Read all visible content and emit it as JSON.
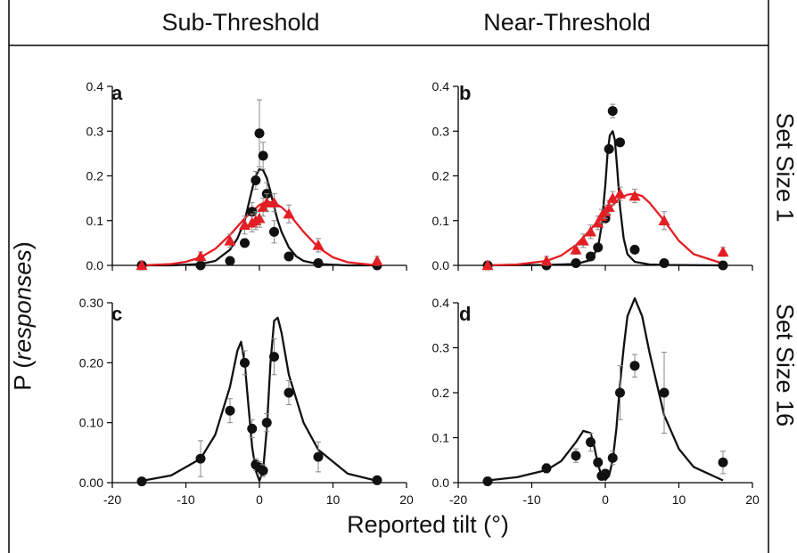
{
  "columns": [
    "Sub-Threshold",
    "Near-Threshold"
  ],
  "rows": [
    "Set Size 1",
    "Set Size 16"
  ],
  "ylabel_prefix": "P (",
  "ylabel_italic": "responses",
  "ylabel_suffix": ")",
  "xlabel": "Reported tilt (°)",
  "colors": {
    "black": "#111111",
    "red": "#e31e24",
    "error_bar": "#888888",
    "frame": "#000000"
  },
  "chart_data": [
    {
      "type": "scatter",
      "panel": "a",
      "xlim": [
        -20,
        20
      ],
      "ylim": [
        0,
        0.4
      ],
      "xticks": [],
      "yticks": [
        0.0,
        0.1,
        0.2,
        0.3,
        0.4
      ],
      "ytick_labels": [
        "0.0",
        "0.1",
        "0.2",
        "0.3",
        "0.4"
      ],
      "series": [
        {
          "color": "black",
          "marker": "circle",
          "x": [
            -16,
            -8,
            -4,
            -2,
            -1,
            -0.5,
            0,
            0.5,
            1,
            2,
            4,
            8,
            16
          ],
          "y": [
            0.0,
            0.0,
            0.01,
            0.05,
            0.12,
            0.19,
            0.295,
            0.245,
            0.16,
            0.075,
            0.02,
            0.005,
            0.0
          ],
          "err": [
            0,
            0,
            0,
            0,
            0.02,
            0.02,
            0.075,
            0.03,
            0.025,
            0.025,
            0,
            0,
            0
          ]
        },
        {
          "color": "red",
          "marker": "triangle",
          "x": [
            -16,
            -8,
            -4,
            -2,
            -1,
            -0.5,
            0,
            0.5,
            1,
            2,
            4,
            8,
            16
          ],
          "y": [
            0.0,
            0.02,
            0.055,
            0.09,
            0.095,
            0.1,
            0.105,
            0.13,
            0.14,
            0.14,
            0.115,
            0.045,
            0.01
          ],
          "err": [
            0.01,
            0.01,
            0.015,
            0.02,
            0.02,
            0.02,
            0.02,
            0.02,
            0.02,
            0.02,
            0.02,
            0.015,
            0.01
          ]
        }
      ],
      "curves": [
        {
          "color": "black",
          "x": [
            -16,
            -12,
            -8,
            -6,
            -4,
            -3,
            -2,
            -1.5,
            -1,
            -0.5,
            0,
            0.5,
            1,
            1.5,
            2,
            2.5,
            3,
            4,
            5,
            6,
            8,
            12,
            16
          ],
          "y": [
            0,
            0,
            0.003,
            0.01,
            0.035,
            0.06,
            0.1,
            0.135,
            0.17,
            0.2,
            0.215,
            0.213,
            0.195,
            0.165,
            0.13,
            0.1,
            0.075,
            0.04,
            0.02,
            0.01,
            0.003,
            0,
            0
          ]
        },
        {
          "color": "red",
          "x": [
            -16,
            -12,
            -10,
            -8,
            -6,
            -4,
            -2,
            0,
            1,
            2,
            3,
            4,
            6,
            8,
            10,
            12,
            16
          ],
          "y": [
            0,
            0.003,
            0.008,
            0.018,
            0.037,
            0.068,
            0.105,
            0.135,
            0.142,
            0.14,
            0.13,
            0.115,
            0.075,
            0.04,
            0.018,
            0.007,
            0
          ]
        }
      ]
    },
    {
      "type": "scatter",
      "panel": "b",
      "xlim": [
        -20,
        20
      ],
      "ylim": [
        0,
        0.4
      ],
      "xticks": [],
      "yticks": [
        0.0,
        0.1,
        0.2,
        0.3,
        0.4
      ],
      "ytick_labels": [
        "0.0",
        "0.1",
        "0.2",
        "0.3",
        "0.4"
      ],
      "series": [
        {
          "color": "black",
          "marker": "circle",
          "x": [
            -16,
            -8,
            -4,
            -2,
            -1,
            0,
            0.5,
            1,
            2,
            4,
            8,
            16
          ],
          "y": [
            0.0,
            0.0,
            0.005,
            0.02,
            0.04,
            0.105,
            0.26,
            0.345,
            0.275,
            0.035,
            0.005,
            0.0
          ],
          "err": [
            0,
            0,
            0,
            0,
            0,
            0,
            0,
            0.015,
            0,
            0,
            0,
            0
          ]
        },
        {
          "color": "red",
          "marker": "triangle",
          "x": [
            -16,
            -8,
            -4,
            -3,
            -2,
            -1,
            -0.5,
            0,
            0.5,
            1,
            2,
            4,
            8,
            16
          ],
          "y": [
            0.0,
            0.01,
            0.035,
            0.055,
            0.075,
            0.095,
            0.11,
            0.12,
            0.13,
            0.15,
            0.16,
            0.155,
            0.1,
            0.03
          ],
          "err": [
            0.01,
            0.01,
            0.01,
            0.015,
            0.015,
            0.015,
            0.015,
            0.015,
            0.015,
            0.015,
            0.015,
            0.015,
            0.02,
            0.01
          ]
        }
      ],
      "curves": [
        {
          "color": "black",
          "x": [
            -16,
            -8,
            -4,
            -2,
            -1,
            -0.5,
            0,
            0.3,
            0.6,
            1,
            1.3,
            1.6,
            2,
            2.5,
            3,
            4,
            6,
            8,
            16
          ],
          "y": [
            0,
            0.001,
            0.003,
            0.012,
            0.04,
            0.09,
            0.18,
            0.25,
            0.29,
            0.3,
            0.28,
            0.22,
            0.13,
            0.06,
            0.025,
            0.008,
            0.002,
            0.001,
            0
          ]
        },
        {
          "color": "red",
          "x": [
            -16,
            -12,
            -8,
            -6,
            -4,
            -2,
            0,
            2,
            3,
            4,
            5,
            6,
            8,
            10,
            12,
            16
          ],
          "y": [
            0,
            0.002,
            0.01,
            0.022,
            0.045,
            0.08,
            0.12,
            0.15,
            0.158,
            0.16,
            0.155,
            0.14,
            0.1,
            0.055,
            0.025,
            0.004
          ]
        }
      ]
    },
    {
      "type": "scatter",
      "panel": "c",
      "xlim": [
        -20,
        20
      ],
      "ylim": [
        0,
        0.3
      ],
      "xticks": [
        -20,
        -10,
        0,
        10,
        20
      ],
      "xtick_labels": [
        "-20",
        "-10",
        "0",
        "10",
        "20"
      ],
      "yticks": [
        0.0,
        0.1,
        0.2,
        0.3
      ],
      "ytick_labels": [
        "0.00",
        "0.10",
        "0.20",
        "0.30"
      ],
      "series": [
        {
          "color": "black",
          "marker": "circle",
          "x": [
            -16,
            -8,
            -4,
            -2,
            -1,
            -0.5,
            0,
            0.5,
            1,
            2,
            4,
            8,
            16
          ],
          "y": [
            0.002,
            0.04,
            0.12,
            0.2,
            0.09,
            0.03,
            0.025,
            0.02,
            0.1,
            0.21,
            0.15,
            0.043,
            0.004
          ],
          "err": [
            0,
            0.03,
            0.02,
            0.02,
            0.015,
            0.01,
            0.01,
            0.01,
            0.015,
            0.03,
            0.02,
            0.025,
            0
          ]
        }
      ],
      "curves": [
        {
          "color": "black",
          "x": [
            -16,
            -12,
            -8,
            -6,
            -4,
            -3,
            -2.5,
            -2,
            -1.5,
            -1,
            -0.5,
            0,
            0.5,
            1,
            1.5,
            2,
            2.5,
            3,
            4,
            6,
            8,
            12,
            16
          ],
          "y": [
            0.003,
            0.012,
            0.04,
            0.08,
            0.16,
            0.22,
            0.235,
            0.2,
            0.13,
            0.06,
            0.02,
            0.003,
            0.02,
            0.09,
            0.2,
            0.27,
            0.275,
            0.25,
            0.18,
            0.1,
            0.055,
            0.015,
            0.003
          ]
        }
      ]
    },
    {
      "type": "scatter",
      "panel": "d",
      "xlim": [
        -20,
        20
      ],
      "ylim": [
        0,
        0.4
      ],
      "xticks": [
        -20,
        -10,
        0,
        10,
        20
      ],
      "xtick_labels": [
        "-20",
        "-10",
        "0",
        "10",
        "20"
      ],
      "yticks": [
        0.0,
        0.1,
        0.2,
        0.3,
        0.4
      ],
      "ytick_labels": [
        "0.0",
        "0.1",
        "0.2",
        "0.3",
        "0.4"
      ],
      "series": [
        {
          "color": "black",
          "marker": "circle",
          "x": [
            -16,
            -8,
            -4,
            -2,
            -1,
            -0.5,
            0,
            1,
            2,
            4,
            8,
            16
          ],
          "y": [
            0.003,
            0.032,
            0.06,
            0.09,
            0.045,
            0.015,
            0.02,
            0.055,
            0.2,
            0.26,
            0.2,
            0.045
          ],
          "err": [
            0,
            0.01,
            0.015,
            0.02,
            0.01,
            0.005,
            0.005,
            0.015,
            0.06,
            0.025,
            0.09,
            0.025
          ]
        }
      ],
      "curves": [
        {
          "color": "black",
          "x": [
            -16,
            -12,
            -8,
            -6,
            -4,
            -3,
            -2,
            -1.5,
            -1,
            -0.5,
            0,
            0.5,
            1,
            1.5,
            2,
            2.5,
            3,
            4,
            5,
            6,
            8,
            10,
            12,
            16
          ],
          "y": [
            0.005,
            0.012,
            0.028,
            0.048,
            0.09,
            0.115,
            0.11,
            0.08,
            0.04,
            0.015,
            0.006,
            0.015,
            0.05,
            0.12,
            0.22,
            0.3,
            0.37,
            0.41,
            0.37,
            0.29,
            0.15,
            0.075,
            0.035,
            0.005
          ]
        }
      ]
    }
  ]
}
